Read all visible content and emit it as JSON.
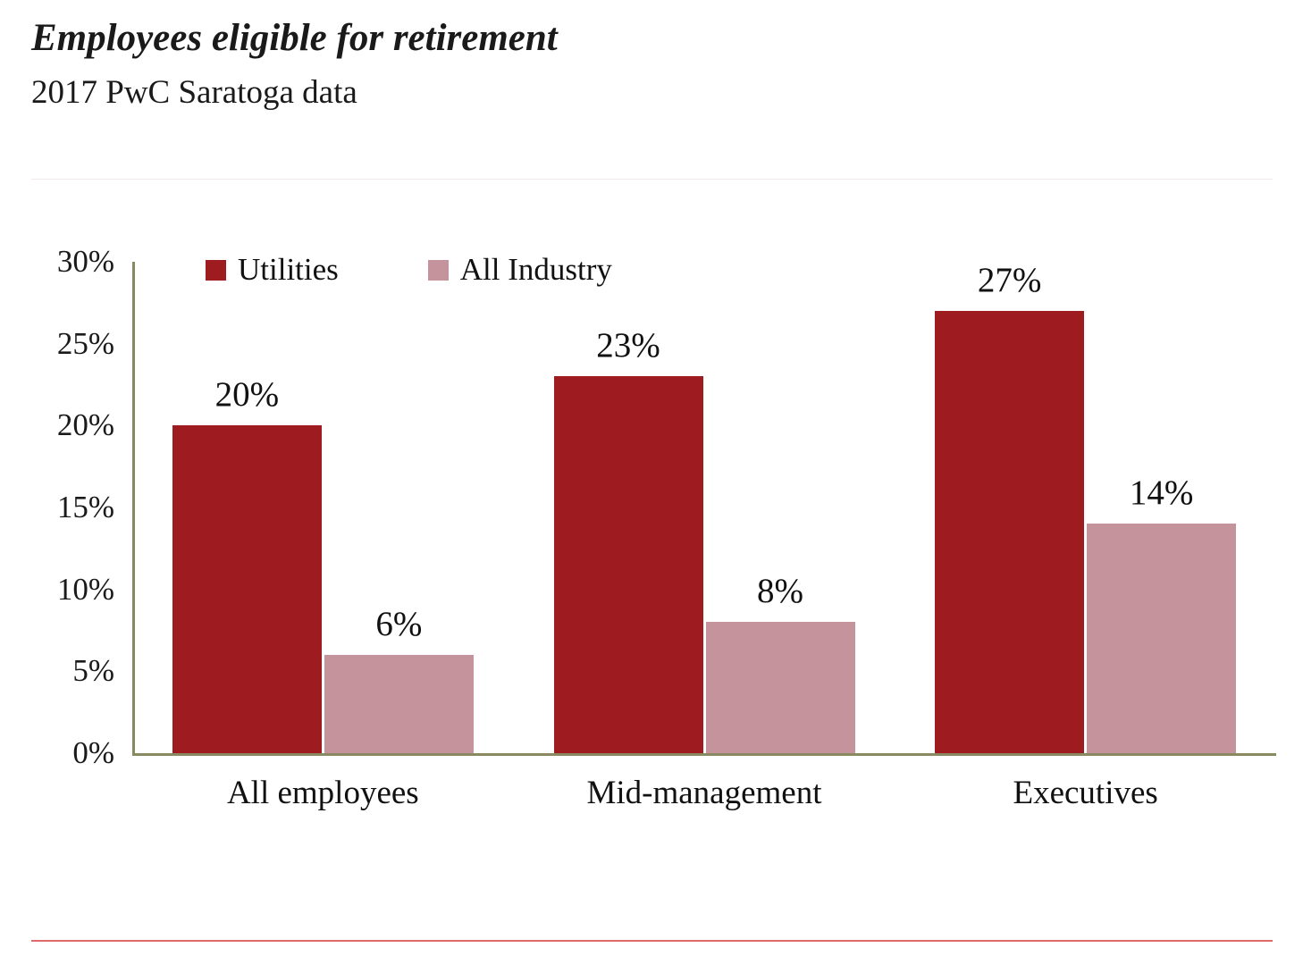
{
  "header": {
    "title": "Employees eligible for retirement",
    "subtitle": "2017 PwC Saratoga data"
  },
  "chart_data": {
    "type": "bar",
    "title": "Employees eligible for retirement",
    "subtitle": "2017 PwC Saratoga data",
    "categories": [
      "All employees",
      "Mid-management",
      "Executives"
    ],
    "series": [
      {
        "name": "Utilities",
        "values": [
          20,
          23,
          27
        ],
        "labels": [
          "20%",
          "23%",
          "27%"
        ],
        "color": "#9E1B20"
      },
      {
        "name": "All Industry",
        "values": [
          6,
          8,
          14
        ],
        "labels": [
          "6%",
          "8%",
          "14%"
        ],
        "color": "#C4939B"
      }
    ],
    "ylim": [
      0,
      30
    ],
    "yticks": [
      {
        "value": 0,
        "label": "0%"
      },
      {
        "value": 5,
        "label": "5%"
      },
      {
        "value": 10,
        "label": "10%"
      },
      {
        "value": 15,
        "label": "15%"
      },
      {
        "value": 20,
        "label": "20%"
      },
      {
        "value": 25,
        "label": "25%"
      },
      {
        "value": 30,
        "label": "30%"
      }
    ],
    "grid": false,
    "legend_position": "top-left",
    "axis_color": "#8A8A62",
    "divider_color": "#E06A6A"
  }
}
